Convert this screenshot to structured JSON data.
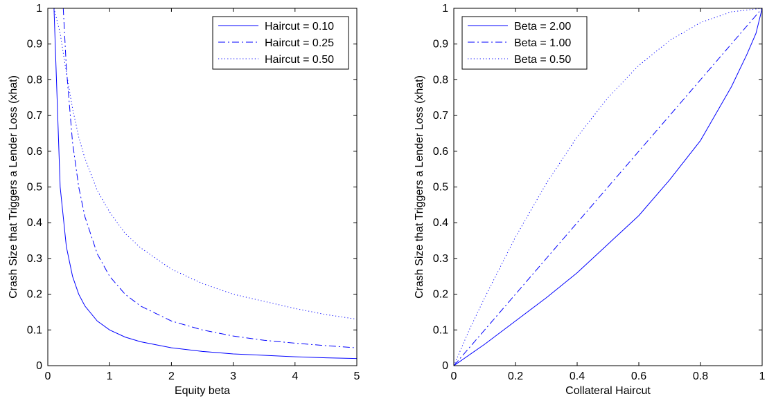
{
  "chart_data": [
    {
      "type": "line",
      "title": "",
      "xlabel": "Equity beta",
      "ylabel": "Crash Size that Triggers a Lender Loss (xhat)",
      "xlim": [
        0,
        5
      ],
      "ylim": [
        0,
        1
      ],
      "x_ticks": [
        0,
        1,
        2,
        3,
        4,
        5
      ],
      "x_tick_labels": [
        "0",
        "1",
        "2",
        "3",
        "4",
        "5"
      ],
      "y_ticks": [
        0,
        0.1,
        0.2,
        0.3,
        0.4,
        0.5,
        0.6,
        0.7,
        0.8,
        0.9,
        1
      ],
      "y_tick_labels": [
        "0",
        "0.1",
        "0.2",
        "0.3",
        "0.4",
        "0.5",
        "0.6",
        "0.7",
        "0.8",
        "0.9",
        "1"
      ],
      "grid": false,
      "legend_position": "top-right",
      "x": [
        0.1,
        0.2,
        0.3,
        0.4,
        0.5,
        0.6,
        0.8,
        1,
        1.25,
        1.5,
        2,
        2.5,
        3,
        3.5,
        4,
        4.5,
        5
      ],
      "series": [
        {
          "name": "Haircut = 0.10",
          "style": "solid",
          "color": "#0000ff",
          "points": [
            [
              0.1,
              1
            ],
            [
              0.2,
              0.5
            ],
            [
              0.3,
              0.333
            ],
            [
              0.4,
              0.25
            ],
            [
              0.5,
              0.2
            ],
            [
              0.6,
              0.167
            ],
            [
              0.8,
              0.125
            ],
            [
              1,
              0.1
            ],
            [
              1.25,
              0.08
            ],
            [
              1.5,
              0.067
            ],
            [
              2,
              0.05
            ],
            [
              2.5,
              0.04
            ],
            [
              3,
              0.033
            ],
            [
              3.5,
              0.029
            ],
            [
              4,
              0.025
            ],
            [
              4.5,
              0.022
            ],
            [
              5,
              0.02
            ]
          ]
        },
        {
          "name": "Haircut = 0.25",
          "style": "dashdot",
          "color": "#0000ff",
          "points": [
            [
              0.25,
              1
            ],
            [
              0.3,
              0.833
            ],
            [
              0.4,
              0.625
            ],
            [
              0.5,
              0.5
            ],
            [
              0.6,
              0.417
            ],
            [
              0.8,
              0.313
            ],
            [
              1,
              0.25
            ],
            [
              1.25,
              0.2
            ],
            [
              1.5,
              0.167
            ],
            [
              2,
              0.125
            ],
            [
              2.5,
              0.1
            ],
            [
              3,
              0.083
            ],
            [
              3.5,
              0.071
            ],
            [
              4,
              0.063
            ],
            [
              4.5,
              0.056
            ],
            [
              5,
              0.05
            ]
          ]
        },
        {
          "name": "Haircut = 0.50",
          "style": "dotted",
          "color": "#0000ff",
          "points": [
            [
              0.1,
              1
            ],
            [
              0.2,
              0.93
            ],
            [
              0.3,
              0.82
            ],
            [
              0.4,
              0.72
            ],
            [
              0.5,
              0.64
            ],
            [
              0.6,
              0.58
            ],
            [
              0.8,
              0.49
            ],
            [
              1,
              0.43
            ],
            [
              1.25,
              0.37
            ],
            [
              1.5,
              0.33
            ],
            [
              2,
              0.27
            ],
            [
              2.5,
              0.23
            ],
            [
              3,
              0.2
            ],
            [
              3.5,
              0.18
            ],
            [
              4,
              0.16
            ],
            [
              4.5,
              0.143
            ],
            [
              5,
              0.13
            ]
          ]
        }
      ]
    },
    {
      "type": "line",
      "title": "",
      "xlabel": "Collateral Haircut",
      "ylabel": "Crash Size that Triggers a Lender Loss (xhat)",
      "xlim": [
        0,
        1
      ],
      "ylim": [
        0,
        1
      ],
      "x_ticks": [
        0,
        0.2,
        0.4,
        0.6,
        0.8,
        1
      ],
      "x_tick_labels": [
        "0",
        "0.2",
        "0.4",
        "0.6",
        "0.8",
        "1"
      ],
      "y_ticks": [
        0,
        0.1,
        0.2,
        0.3,
        0.4,
        0.5,
        0.6,
        0.7,
        0.8,
        0.9,
        1
      ],
      "y_tick_labels": [
        "0",
        "0.1",
        "0.2",
        "0.3",
        "0.4",
        "0.5",
        "0.6",
        "0.7",
        "0.8",
        "0.9",
        "1"
      ],
      "grid": false,
      "legend_position": "top-left",
      "series": [
        {
          "name": "Beta = 2.00",
          "style": "solid",
          "color": "#0000ff",
          "points": [
            [
              0,
              0
            ],
            [
              0.1,
              0.06
            ],
            [
              0.2,
              0.125
            ],
            [
              0.3,
              0.19
            ],
            [
              0.4,
              0.26
            ],
            [
              0.5,
              0.34
            ],
            [
              0.6,
              0.42
            ],
            [
              0.7,
              0.52
            ],
            [
              0.8,
              0.63
            ],
            [
              0.9,
              0.78
            ],
            [
              0.95,
              0.87
            ],
            [
              0.98,
              0.93
            ],
            [
              1,
              1
            ]
          ]
        },
        {
          "name": "Beta = 1.00",
          "style": "dashdot",
          "color": "#0000ff",
          "points": [
            [
              0,
              0
            ],
            [
              0.2,
              0.2
            ],
            [
              0.4,
              0.4
            ],
            [
              0.6,
              0.6
            ],
            [
              0.8,
              0.8
            ],
            [
              1,
              1
            ]
          ]
        },
        {
          "name": "Beta = 0.50",
          "style": "dotted",
          "color": "#0000ff",
          "points": [
            [
              0,
              0
            ],
            [
              0.05,
              0.1
            ],
            [
              0.1,
              0.19
            ],
            [
              0.2,
              0.36
            ],
            [
              0.3,
              0.51
            ],
            [
              0.4,
              0.64
            ],
            [
              0.5,
              0.75
            ],
            [
              0.6,
              0.84
            ],
            [
              0.7,
              0.91
            ],
            [
              0.8,
              0.96
            ],
            [
              0.9,
              0.99
            ],
            [
              1,
              1
            ]
          ]
        }
      ]
    }
  ]
}
